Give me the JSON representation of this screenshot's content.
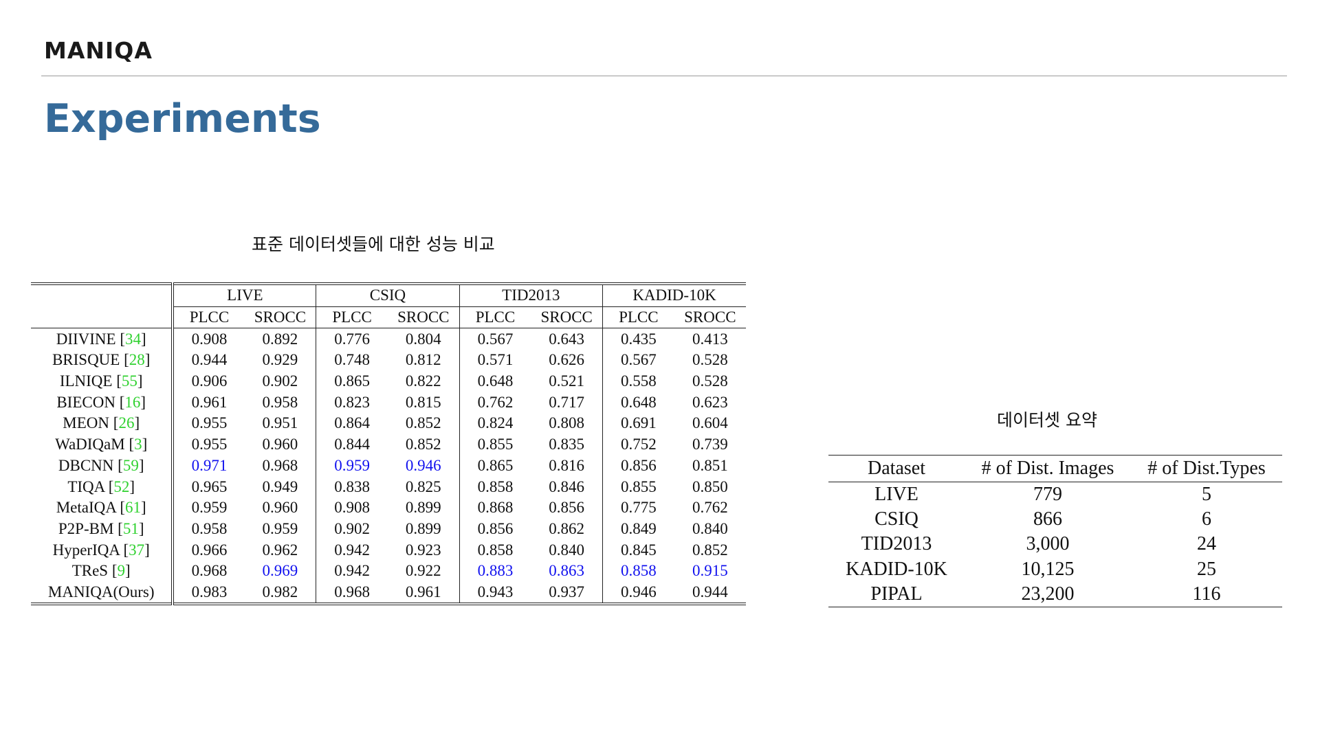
{
  "header": {
    "brand": "MANIQA",
    "title": "Experiments"
  },
  "left_caption": "표준 데이터셋들에 대한 성능 비교",
  "right_caption": "데이터셋 요약",
  "comparison": {
    "datasets": [
      "LIVE",
      "CSIQ",
      "TID2013",
      "KADID-10K"
    ],
    "metrics": [
      "PLCC",
      "SROCC"
    ],
    "rows": [
      {
        "method": "DIIVINE",
        "ref": "34",
        "values": [
          "0.908",
          "0.892",
          "0.776",
          "0.804",
          "0.567",
          "0.643",
          "0.435",
          "0.413"
        ],
        "blue": [],
        "bold": []
      },
      {
        "method": "BRISQUE",
        "ref": "28",
        "values": [
          "0.944",
          "0.929",
          "0.748",
          "0.812",
          "0.571",
          "0.626",
          "0.567",
          "0.528"
        ],
        "blue": [],
        "bold": []
      },
      {
        "method": "ILNIQE",
        "ref": "55",
        "values": [
          "0.906",
          "0.902",
          "0.865",
          "0.822",
          "0.648",
          "0.521",
          "0.558",
          "0.528"
        ],
        "blue": [],
        "bold": []
      },
      {
        "method": "BIECON",
        "ref": "16",
        "values": [
          "0.961",
          "0.958",
          "0.823",
          "0.815",
          "0.762",
          "0.717",
          "0.648",
          "0.623"
        ],
        "blue": [],
        "bold": []
      },
      {
        "method": "MEON",
        "ref": "26",
        "values": [
          "0.955",
          "0.951",
          "0.864",
          "0.852",
          "0.824",
          "0.808",
          "0.691",
          "0.604"
        ],
        "blue": [],
        "bold": []
      },
      {
        "method": "WaDIQaM",
        "ref": "3",
        "values": [
          "0.955",
          "0.960",
          "0.844",
          "0.852",
          "0.855",
          "0.835",
          "0.752",
          "0.739"
        ],
        "blue": [],
        "bold": []
      },
      {
        "method": "DBCNN",
        "ref": "59",
        "values": [
          "0.971",
          "0.968",
          "0.959",
          "0.946",
          "0.865",
          "0.816",
          "0.856",
          "0.851"
        ],
        "blue": [
          0,
          2,
          3
        ],
        "bold": []
      },
      {
        "method": "TIQA",
        "ref": "52",
        "values": [
          "0.965",
          "0.949",
          "0.838",
          "0.825",
          "0.858",
          "0.846",
          "0.855",
          "0.850"
        ],
        "blue": [],
        "bold": []
      },
      {
        "method": "MetaIQA",
        "ref": "61",
        "values": [
          "0.959",
          "0.960",
          "0.908",
          "0.899",
          "0.868",
          "0.856",
          "0.775",
          "0.762"
        ],
        "blue": [],
        "bold": []
      },
      {
        "method": "P2P-BM",
        "ref": "51",
        "values": [
          "0.958",
          "0.959",
          "0.902",
          "0.899",
          "0.856",
          "0.862",
          "0.849",
          "0.840"
        ],
        "blue": [],
        "bold": []
      },
      {
        "method": "HyperIQA",
        "ref": "37",
        "values": [
          "0.966",
          "0.962",
          "0.942",
          "0.923",
          "0.858",
          "0.840",
          "0.845",
          "0.852"
        ],
        "blue": [],
        "bold": []
      },
      {
        "method": "TReS",
        "ref": "9",
        "values": [
          "0.968",
          "0.969",
          "0.942",
          "0.922",
          "0.883",
          "0.863",
          "0.858",
          "0.915"
        ],
        "blue": [
          1,
          4,
          5,
          6,
          7
        ],
        "bold": []
      },
      {
        "method": "MANIQA(Ours)",
        "ref": "",
        "values": [
          "0.983",
          "0.982",
          "0.968",
          "0.961",
          "0.943",
          "0.937",
          "0.946",
          "0.944"
        ],
        "blue": [],
        "bold": [
          0,
          1,
          2,
          3,
          4,
          5,
          6,
          7
        ]
      }
    ]
  },
  "summary": {
    "headers": [
      "Dataset",
      "# of Dist. Images",
      "# of Dist.Types"
    ],
    "rows": [
      [
        "LIVE",
        "779",
        "5"
      ],
      [
        "CSIQ",
        "866",
        "6"
      ],
      [
        "TID2013",
        "3,000",
        "24"
      ],
      [
        "KADID-10K",
        "10,125",
        "25"
      ],
      [
        "PIPAL",
        "23,200",
        "116"
      ]
    ]
  },
  "colors": {
    "title": "#356a99",
    "highlight": "#1010ee",
    "reference": "#2fd12f"
  }
}
